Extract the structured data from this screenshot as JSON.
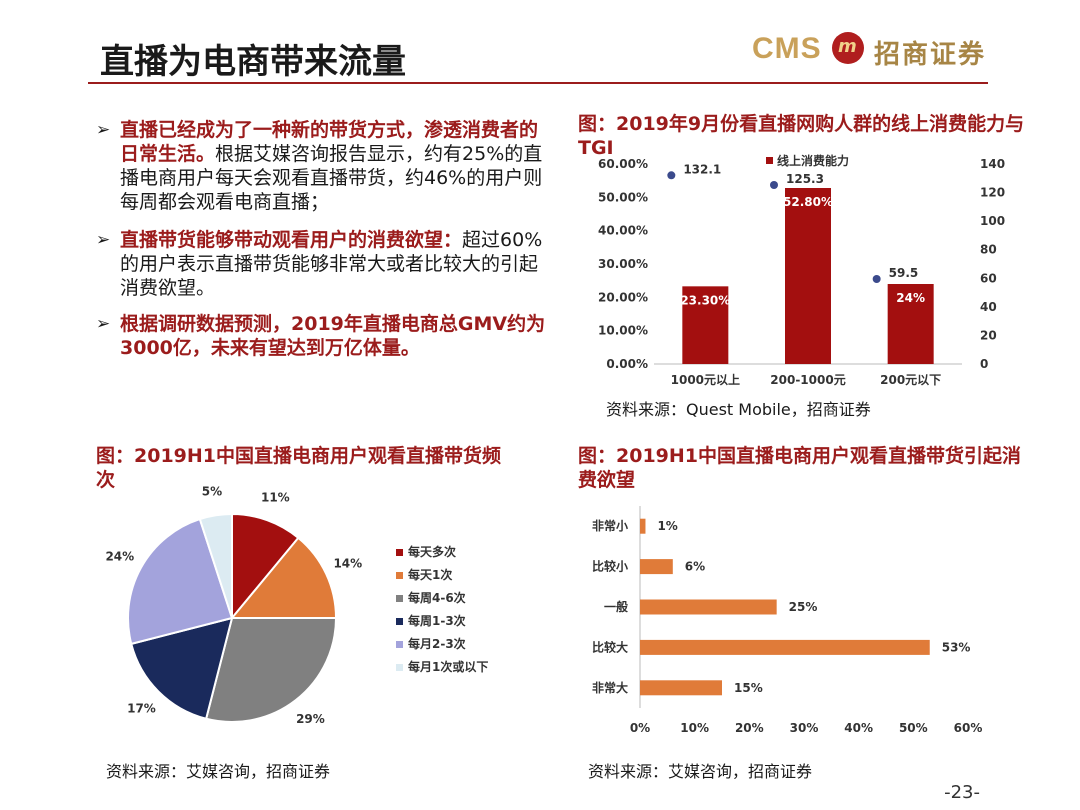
{
  "title": "直播为电商带来流量",
  "logo": {
    "text_en": "CMS",
    "glyph": "m",
    "text_cn": "招商证券"
  },
  "bullets": [
    {
      "highlight": "直播已经成为了一种新的带货方式，渗透消费者的日常生活。",
      "text": "根据艾媒咨询报告显示，约有25%的直播电商用户每天会观看直播带货，约46%的用户则每周都会观看电商直播；"
    },
    {
      "highlight": "直播带货能够带动观看用户的消费欲望：",
      "text": "超过60%的用户表示直播带货能够非常大或者比较大的引起消费欲望。"
    },
    {
      "highlight": "根据调研数据预测，2019年直播电商总GMV约为3000亿，未来有望达到万亿体量。",
      "text": ""
    }
  ],
  "bullet_marker": "➢",
  "page_number": "-23-",
  "colors": {
    "accent": "#9b1c1c",
    "bar_red": "#a30f0f",
    "bar_orange": "#e07b39"
  },
  "chart_data": [
    {
      "type": "bar",
      "title": "图：2019年9月份看直播网购人群的线上消费能力与TGI",
      "categories": [
        "1000元以上",
        "200-1000元",
        "200元以下"
      ],
      "series": [
        {
          "name": "",
          "values": [
            23.3,
            52.8,
            24
          ],
          "labels": [
            "23.30%",
            "52.80%",
            "24%"
          ],
          "axis": "left"
        },
        {
          "name": "线上消费能力",
          "values": [
            132.1,
            125.3,
            59.5
          ],
          "labels": [
            "132.1",
            "125.3",
            "59.5"
          ],
          "axis": "right",
          "marker": "point"
        }
      ],
      "ylim": [
        0,
        60
      ],
      "yticks": [
        "0.00%",
        "10.00%",
        "20.00%",
        "30.00%",
        "40.00%",
        "50.00%",
        "60.00%"
      ],
      "y2lim": [
        0,
        140
      ],
      "y2ticks": [
        "0",
        "20",
        "40",
        "60",
        "80",
        "100",
        "120",
        "140"
      ],
      "legend": "top",
      "source": "资料来源：Quest Mobile，招商证券"
    },
    {
      "type": "pie",
      "title": "图：2019H1中国直播电商用户观看直播带货频次",
      "slices": [
        {
          "label": "每天多次",
          "value": 11,
          "value_label": "11%",
          "color": "#a30f0f"
        },
        {
          "label": "每天1次",
          "value": 14,
          "value_label": "14%",
          "color": "#e07b39"
        },
        {
          "label": "每周4-6次",
          "value": 29,
          "value_label": "29%",
          "color": "#808080"
        },
        {
          "label": "每周1-3次",
          "value": 17,
          "value_label": "17%",
          "color": "#1a2a5c"
        },
        {
          "label": "每月2-3次",
          "value": 24,
          "value_label": "24%",
          "color": "#a3a3dc"
        },
        {
          "label": "每月1次或以下",
          "value": 5,
          "value_label": "5%",
          "color": "#dcebf2"
        }
      ],
      "legend": "right",
      "source": "资料来源：艾媒咨询，招商证券"
    },
    {
      "type": "bar",
      "orientation": "horizontal",
      "title": "图：2019H1中国直播电商用户观看直播带货引起消费欲望",
      "categories": [
        "非常小",
        "比较小",
        "一般",
        "比较大",
        "非常大"
      ],
      "values": [
        1,
        6,
        25,
        53,
        15
      ],
      "value_labels": [
        "1%",
        "6%",
        "25%",
        "53%",
        "15%"
      ],
      "xlim": [
        0,
        60
      ],
      "xticks": [
        "0%",
        "10%",
        "20%",
        "30%",
        "40%",
        "50%",
        "60%"
      ],
      "source": "资料来源：艾媒咨询，招商证券"
    }
  ]
}
